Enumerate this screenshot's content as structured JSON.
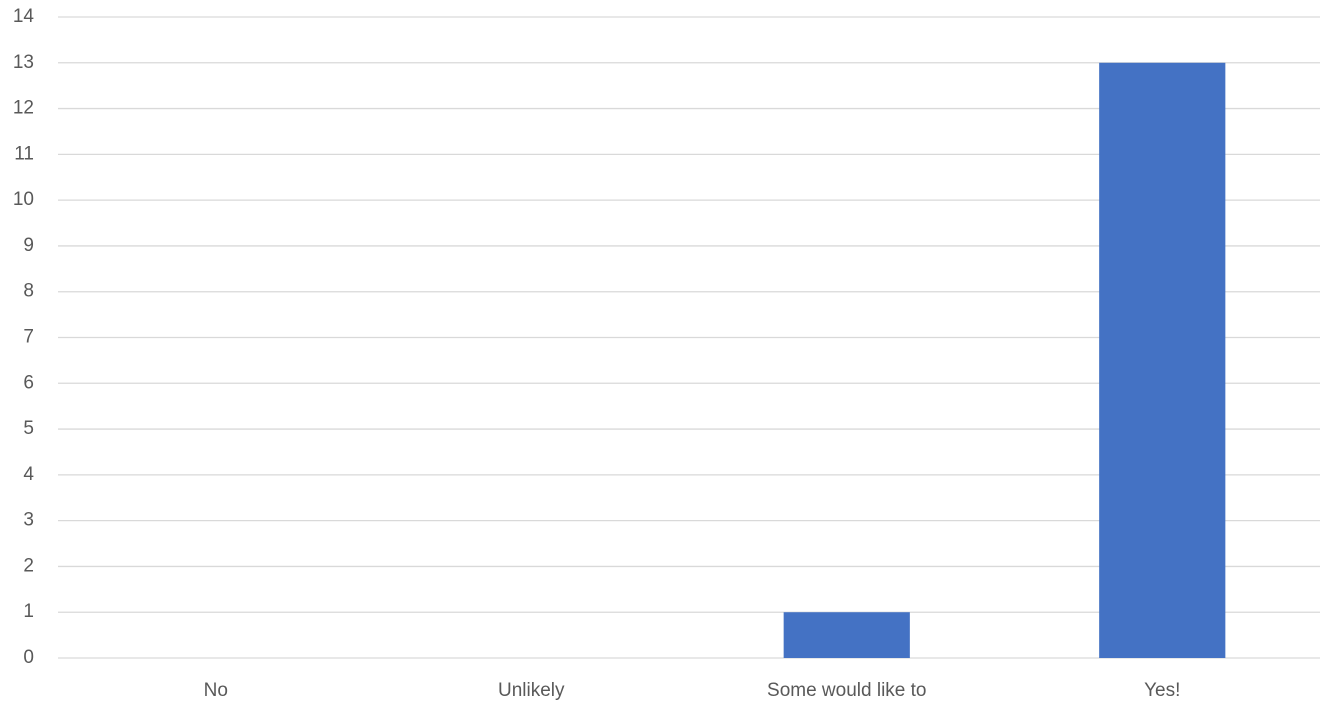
{
  "chart_data": {
    "type": "bar",
    "categories": [
      "No",
      "Unlikely",
      "Some would like to",
      "Yes!"
    ],
    "values": [
      0,
      0,
      1,
      13
    ],
    "color": "#4472c4",
    "ylim": [
      0,
      14
    ],
    "yticks": [
      0,
      1,
      2,
      3,
      4,
      5,
      6,
      7,
      8,
      9,
      10,
      11,
      12,
      13,
      14
    ],
    "grid": true
  }
}
